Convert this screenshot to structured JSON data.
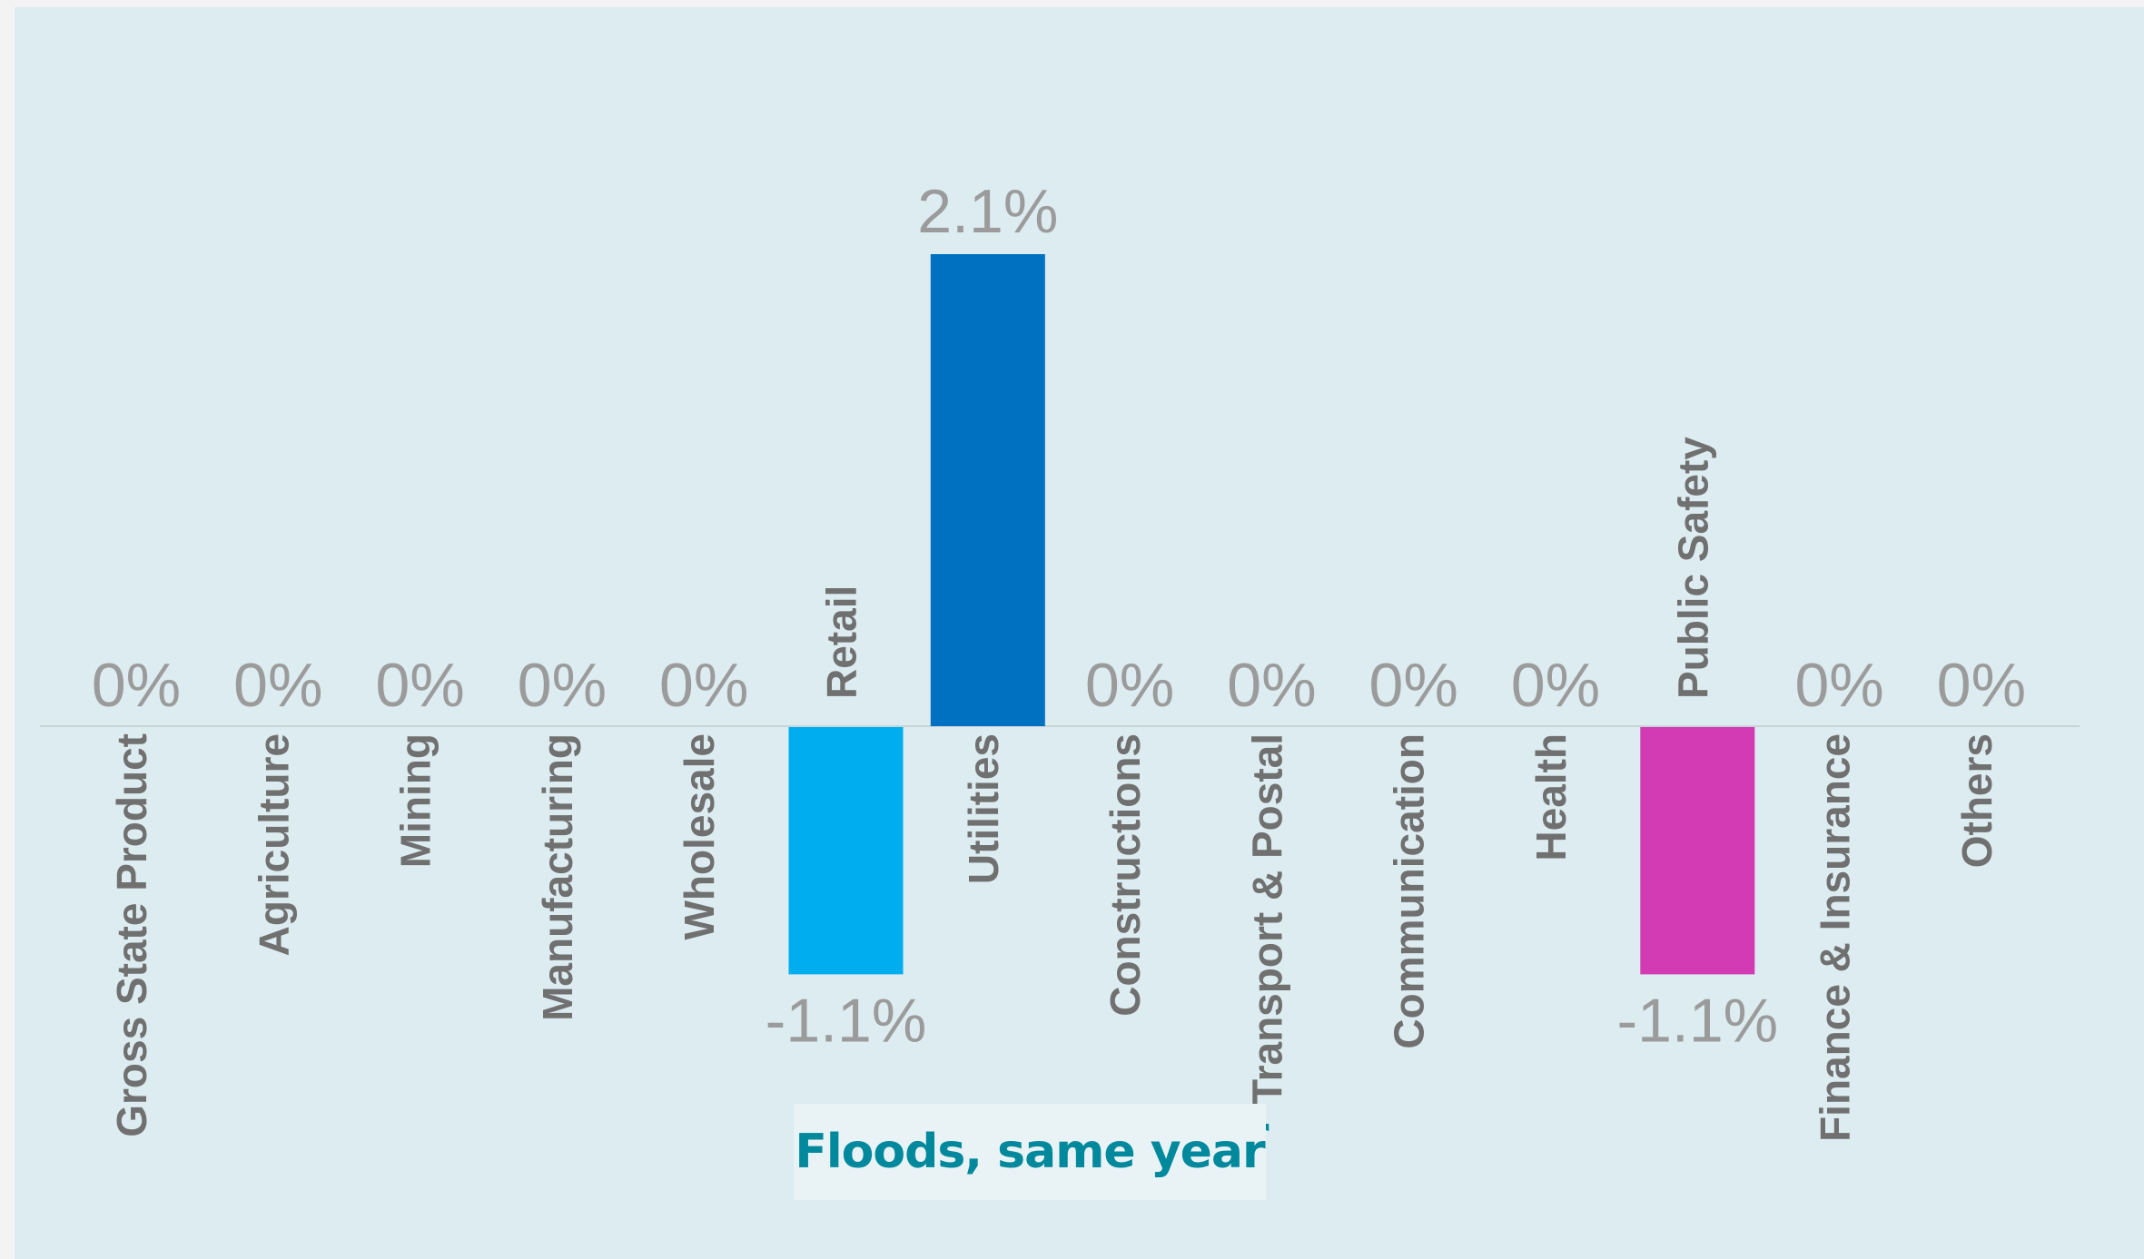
{
  "chart_data": {
    "type": "bar",
    "title": "Floods, same year",
    "title_overflow_fragment": "ar",
    "categories": [
      "Gross State Product",
      "Agriculture",
      "Mining",
      "Manufacturing",
      "Wholesale",
      "Retail",
      "Utilities",
      "Constructions",
      "Transport & Postal",
      "Communication",
      "Health",
      "Public Safety",
      "Finance & Insurance",
      "Others"
    ],
    "values": [
      0,
      0,
      0,
      0,
      0,
      -1.1,
      2.1,
      0,
      0,
      0,
      0,
      -1.1,
      0,
      0
    ],
    "value_labels": [
      "0%",
      "0%",
      "0%",
      "0%",
      "0%",
      "-1.1%",
      "2.1%",
      "0%",
      "0%",
      "0%",
      "0%",
      "-1.1%",
      "0%",
      "0%"
    ],
    "bar_colors": [
      "#00aeef",
      "#00aeef",
      "#00aeef",
      "#00aeef",
      "#00aeef",
      "#00aeef",
      "#0070c0",
      "#00aeef",
      "#00aeef",
      "#00aeef",
      "#00aeef",
      "#d23bb4",
      "#00aeef",
      "#00aeef"
    ],
    "ylim": [
      -1.1,
      2.1
    ],
    "grid": false,
    "legend": "none",
    "xlabel": "",
    "ylabel": "",
    "colors": {
      "panel_background": "#dcecf0",
      "axis_line": "#c8d4d8",
      "value_label": "#9b9b9b",
      "category_label": "#707070",
      "title": "#00889c"
    }
  }
}
